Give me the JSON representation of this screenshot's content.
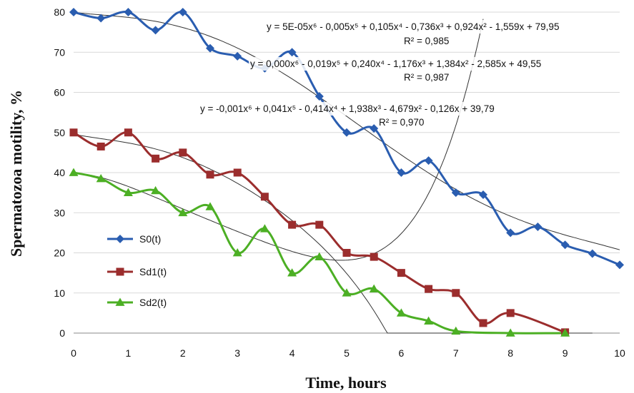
{
  "chart_data": {
    "type": "line",
    "xlabel": "Time, hours",
    "ylabel": "Spermatozoa motility, %",
    "xlim": [
      0,
      10
    ],
    "ylim": [
      0,
      80
    ],
    "x_ticks": [
      "0",
      "1",
      "2",
      "3",
      "4",
      "5",
      "6",
      "7",
      "8",
      "9",
      "10"
    ],
    "y_ticks": [
      "0",
      "10",
      "20",
      "30",
      "40",
      "50",
      "60",
      "70",
      "80"
    ],
    "grid": "horizontal",
    "legend_position": "left-middle",
    "series": [
      {
        "name": "S0(t)",
        "color": "#2a5db0",
        "marker": "diamond",
        "x": [
          0,
          0.5,
          1,
          1.5,
          2,
          2.5,
          3,
          3.5,
          4,
          4.5,
          5,
          5.5,
          6,
          6.5,
          7,
          7.5,
          8,
          8.5,
          9,
          9.5,
          10
        ],
        "y": [
          80,
          78.5,
          80,
          75.5,
          80,
          71,
          69,
          66,
          70,
          59,
          50,
          51,
          40,
          43,
          35,
          34.5,
          25,
          26.5,
          22,
          19.8,
          17
        ]
      },
      {
        "name": "Sd1(t)",
        "color": "#9b2d2d",
        "marker": "square",
        "x": [
          0,
          0.5,
          1,
          1.5,
          2,
          2.5,
          3,
          3.5,
          4,
          4.5,
          5,
          5.5,
          6,
          6.5,
          7,
          7.5,
          8,
          9
        ],
        "y": [
          50,
          46.5,
          50,
          43.5,
          45,
          39.5,
          40,
          34,
          27,
          27,
          20,
          19,
          15,
          11,
          10,
          2.5,
          5,
          0.2
        ]
      },
      {
        "name": "Sd2(t)",
        "color": "#4caf24",
        "marker": "triangle",
        "x": [
          0,
          0.5,
          1,
          1.5,
          2,
          2.5,
          3,
          3.5,
          4,
          4.5,
          5,
          5.5,
          6,
          6.5,
          7,
          8,
          9
        ],
        "y": [
          40,
          38.5,
          35,
          35.5,
          30,
          31.5,
          20,
          26,
          15,
          19,
          10,
          11,
          5,
          3,
          0.5,
          0,
          0
        ]
      }
    ],
    "trendlines": [
      {
        "coefficients": [
          5e-05,
          -0.005,
          0.105,
          -0.736,
          0.924,
          -1.559,
          79.95
        ],
        "x_range": [
          0,
          10
        ]
      },
      {
        "coefficients": [
          0.0,
          -0.019,
          0.24,
          -1.176,
          1.384,
          -2.585,
          49.55
        ],
        "x_range": [
          0,
          9.5
        ]
      },
      {
        "coefficients": [
          -0.001,
          0.041,
          -0.414,
          1.938,
          -4.679,
          -0.126,
          39.79
        ],
        "x_range": [
          0,
          7.5
        ]
      }
    ],
    "annotations": [
      {
        "equation": "y = 5E-05x⁶ - 0,005x⁵ + 0,105x⁴ - 0,736x³ + 0,924x² - 1,559x + 79,95",
        "r2": "R² = 0,985"
      },
      {
        "equation": "y = 0,000x⁶ - 0,019x⁵ + 0,240x⁴ - 1,176x³ + 1,384x² - 2,585x + 49,55",
        "r2": "R² = 0,987"
      },
      {
        "equation": "y = -0,001x⁶ + 0,041x⁵ - 0,414x⁴ + 1,938x³ - 4,679x² - 0,126x + 39,79",
        "r2": "R² = 0,970"
      }
    ]
  }
}
